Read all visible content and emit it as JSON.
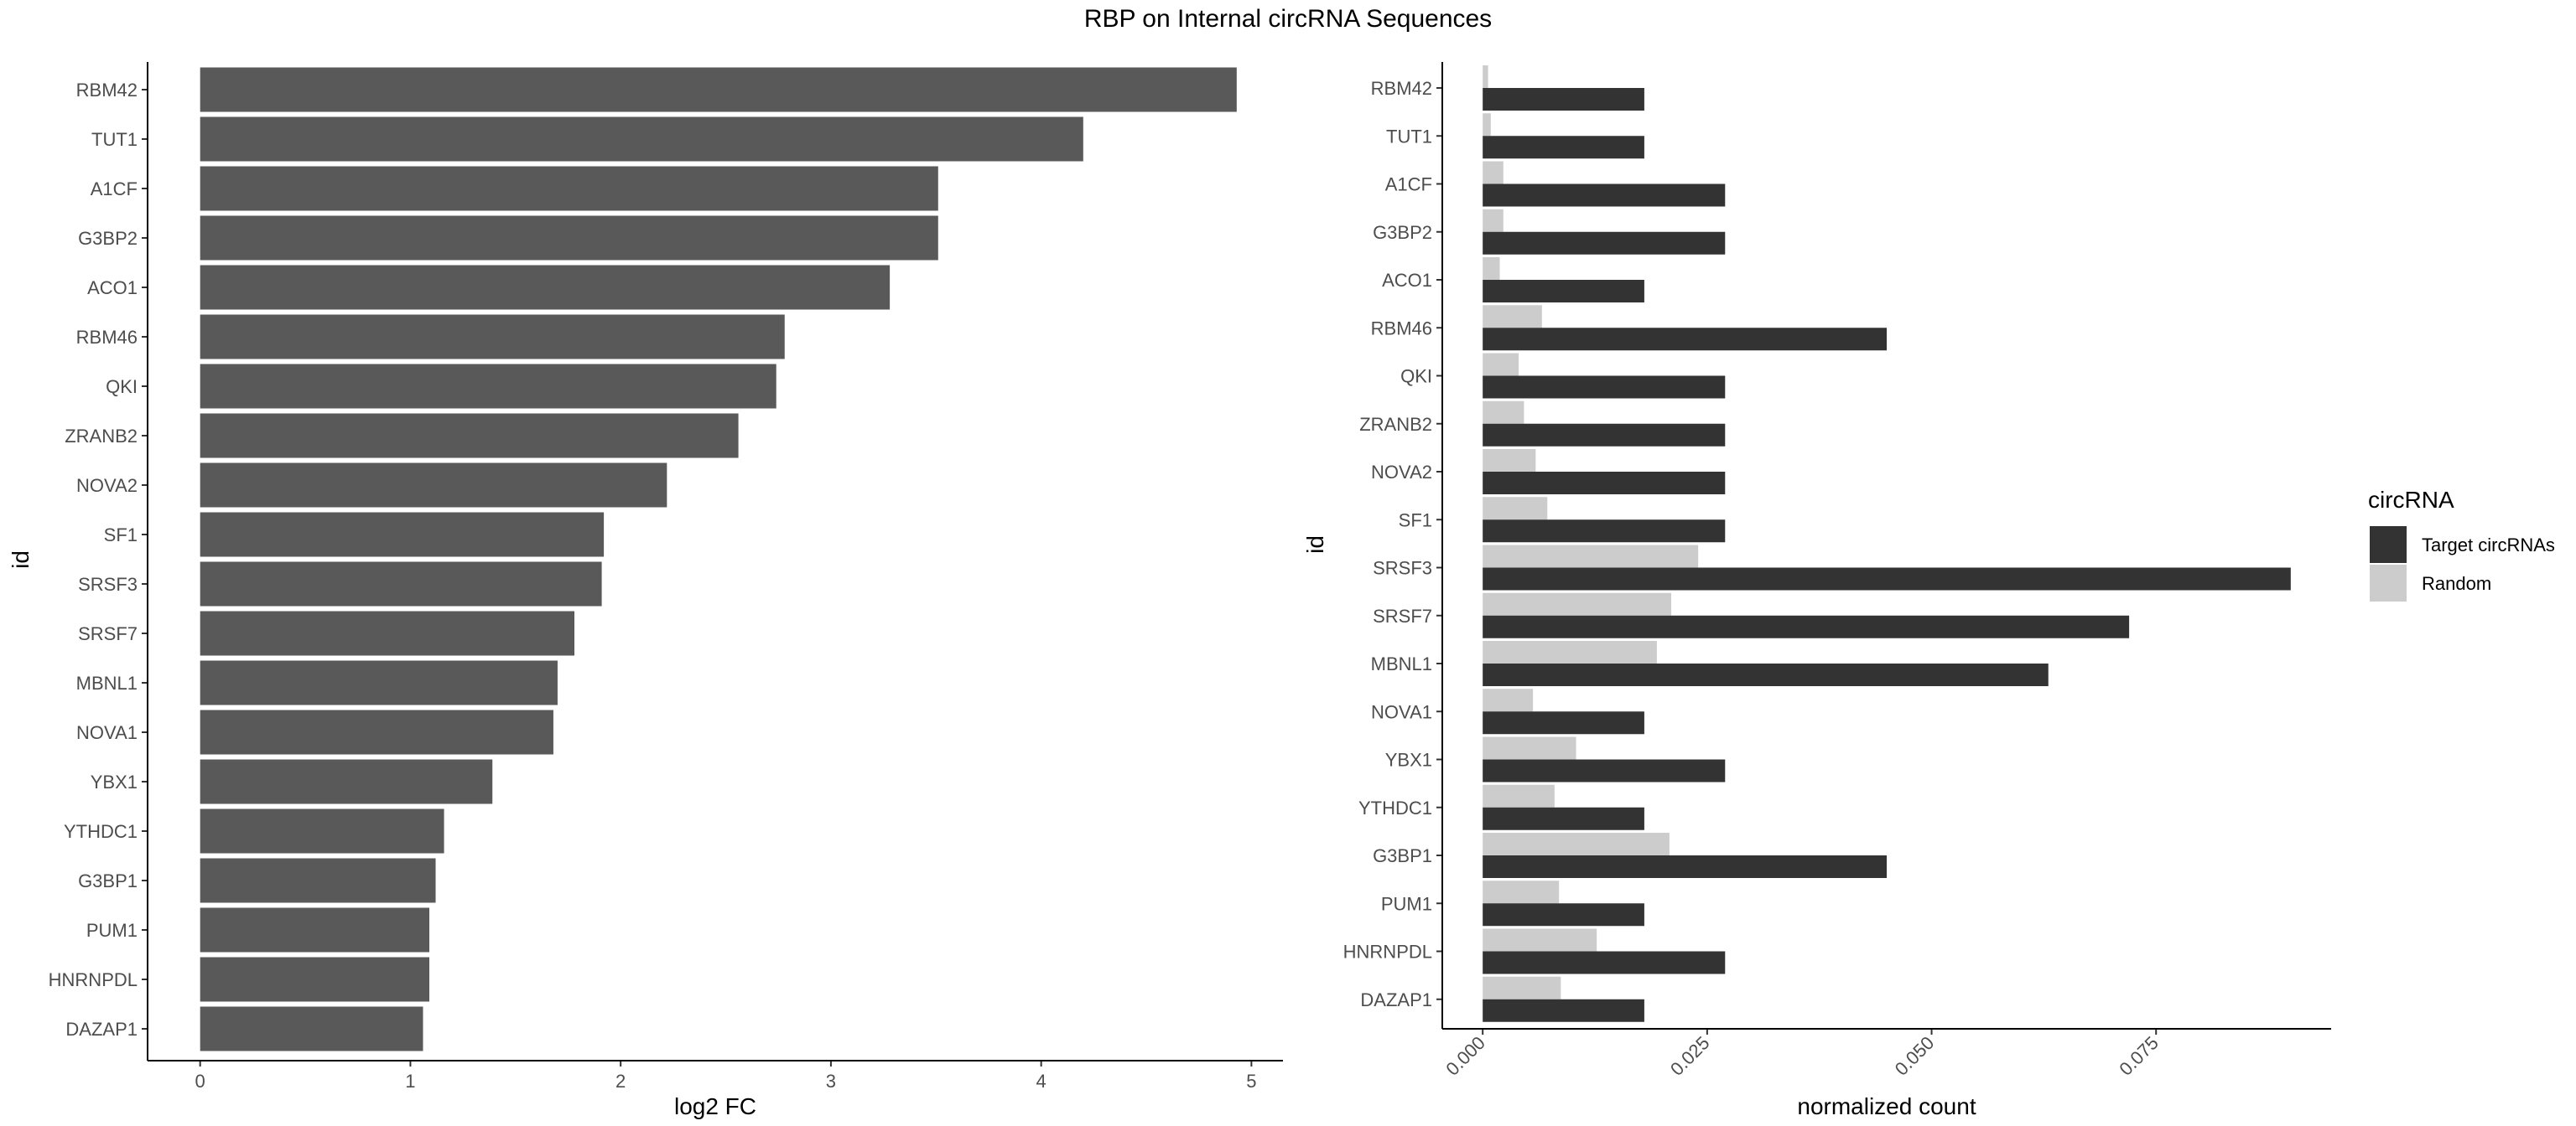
{
  "title": "RBP on Internal circRNA Sequences",
  "colors": {
    "fc_bar": "#595959",
    "target": "#333333",
    "random": "#cccccc",
    "axis": "#000000",
    "tick_text": "#4d4d4d"
  },
  "chart_data": [
    {
      "type": "bar",
      "orientation": "horizontal",
      "xlabel": "log2 FC",
      "ylabel": "id",
      "xlim": [
        -0.25,
        5.15
      ],
      "xticks": [
        0,
        1,
        2,
        3,
        4,
        5
      ],
      "grid": false,
      "categories": [
        "RBM42",
        "TUT1",
        "A1CF",
        "G3BP2",
        "ACO1",
        "RBM46",
        "QKI",
        "ZRANB2",
        "NOVA2",
        "SF1",
        "SRSF3",
        "SRSF7",
        "MBNL1",
        "NOVA1",
        "YBX1",
        "YTHDC1",
        "G3BP1",
        "PUM1",
        "HNRNPDL",
        "DAZAP1"
      ],
      "values": [
        4.93,
        4.2,
        3.51,
        3.51,
        3.28,
        2.78,
        2.74,
        2.56,
        2.22,
        1.92,
        1.91,
        1.78,
        1.7,
        1.68,
        1.39,
        1.16,
        1.12,
        1.09,
        1.09,
        1.06
      ]
    },
    {
      "type": "bar",
      "orientation": "horizontal",
      "grouped": true,
      "xlabel": "normalized count",
      "ylabel": "id",
      "xlim": [
        -0.0045,
        0.0945
      ],
      "xticks": [
        "0.000",
        "0.025",
        "0.050",
        "0.075"
      ],
      "xtick_values": [
        0,
        0.025,
        0.05,
        0.075
      ],
      "xtick_rotation": 45,
      "grid": false,
      "legend": {
        "title": "circRNA",
        "position": "right"
      },
      "categories": [
        "RBM42",
        "TUT1",
        "A1CF",
        "G3BP2",
        "ACO1",
        "RBM46",
        "QKI",
        "ZRANB2",
        "NOVA2",
        "SF1",
        "SRSF3",
        "SRSF7",
        "MBNL1",
        "NOVA1",
        "YBX1",
        "YTHDC1",
        "G3BP1",
        "PUM1",
        "HNRNPDL",
        "DAZAP1"
      ],
      "series": [
        {
          "name": "Target circRNAs",
          "color": "#333333",
          "values": [
            0.018,
            0.018,
            0.027,
            0.027,
            0.018,
            0.045,
            0.027,
            0.027,
            0.027,
            0.027,
            0.09,
            0.072,
            0.063,
            0.018,
            0.027,
            0.018,
            0.045,
            0.018,
            0.027,
            0.018
          ]
        },
        {
          "name": "Random",
          "color": "#cccccc",
          "values": [
            0.0006,
            0.0009,
            0.0023,
            0.0023,
            0.0019,
            0.0066,
            0.004,
            0.0046,
            0.0059,
            0.0072,
            0.024,
            0.021,
            0.0194,
            0.0056,
            0.0104,
            0.008,
            0.0208,
            0.0085,
            0.0127,
            0.0087
          ]
        }
      ]
    }
  ]
}
